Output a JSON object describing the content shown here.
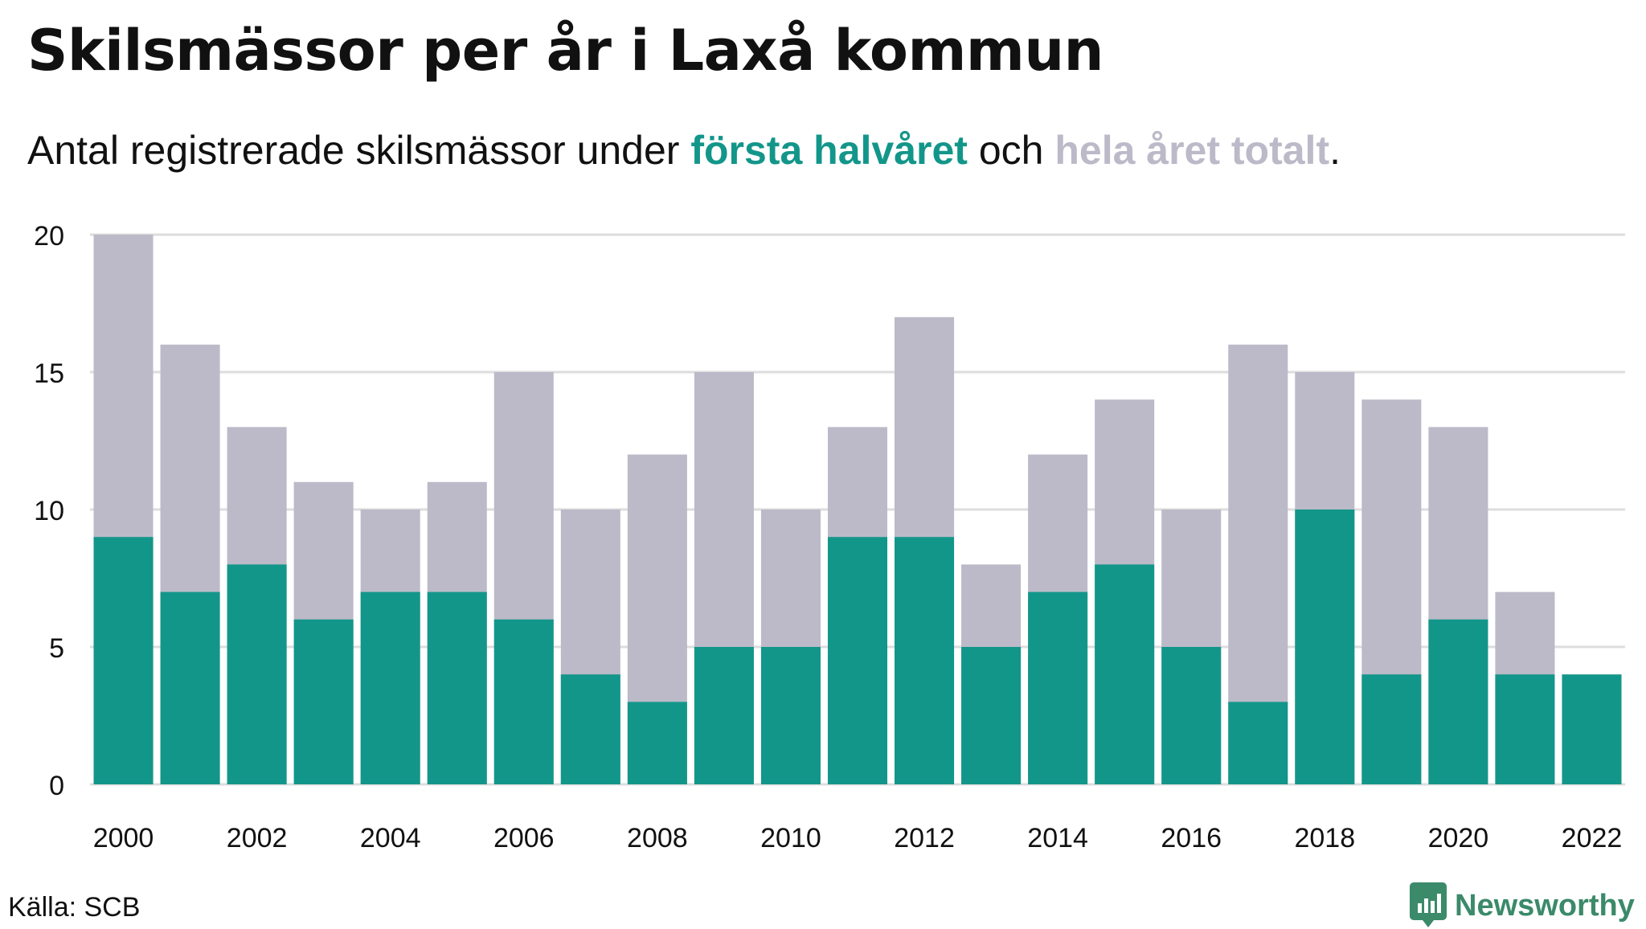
{
  "header": {
    "title": "Skilsmässor per år i Laxå kommun",
    "subtitle_part1": "Antal registrerade skilsmässor under ",
    "subtitle_highlight1": "första halvåret",
    "subtitle_part2": " och ",
    "subtitle_highlight2": "hela året totalt",
    "subtitle_part3": "."
  },
  "footer": {
    "source": "Källa: SCB",
    "brand": "Newsworthy"
  },
  "colors": {
    "first_half": "#13968a",
    "full_year": "#bcbac8",
    "grid": "#dddddd",
    "text": "#111111",
    "brand": "#3b8a6a"
  },
  "chart_data": {
    "type": "bar",
    "stacking": "overlay",
    "categories": [
      "2000",
      "2001",
      "2002",
      "2003",
      "2004",
      "2005",
      "2006",
      "2007",
      "2008",
      "2009",
      "2010",
      "2011",
      "2012",
      "2013",
      "2014",
      "2015",
      "2016",
      "2017",
      "2018",
      "2019",
      "2020",
      "2021",
      "2022"
    ],
    "series": [
      {
        "name": "hela året totalt",
        "values": [
          20,
          16,
          13,
          11,
          10,
          11,
          15,
          10,
          12,
          15,
          10,
          13,
          17,
          8,
          12,
          14,
          10,
          16,
          15,
          14,
          13,
          7,
          null
        ]
      },
      {
        "name": "första halvåret",
        "values": [
          9,
          7,
          8,
          6,
          7,
          7,
          6,
          4,
          3,
          5,
          5,
          9,
          9,
          5,
          7,
          8,
          5,
          3,
          10,
          4,
          6,
          4,
          4
        ]
      }
    ],
    "x_tick_labels": [
      "2000",
      "2002",
      "2004",
      "2006",
      "2008",
      "2010",
      "2012",
      "2014",
      "2016",
      "2018",
      "2020",
      "2022"
    ],
    "y_ticks": [
      0,
      5,
      10,
      15,
      20
    ],
    "ylim": [
      0,
      20
    ],
    "grid": true,
    "xlabel": "",
    "ylabel": ""
  }
}
